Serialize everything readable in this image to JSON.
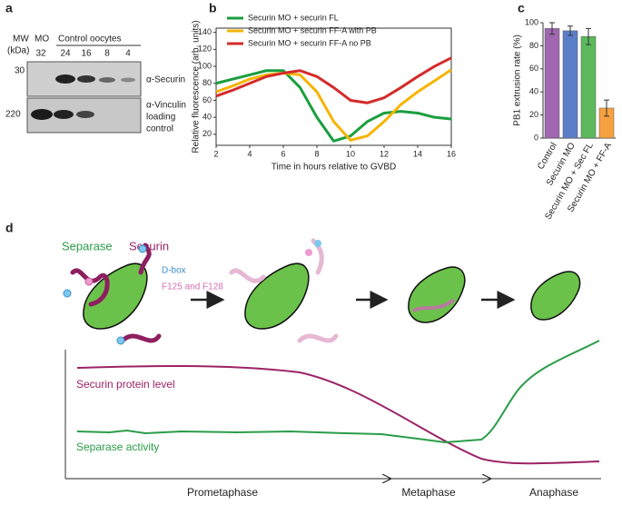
{
  "panel_labels": [
    "a",
    "b",
    "c",
    "d"
  ],
  "blot": {
    "mw_label": "MW",
    "mw_unit": "(kDa)",
    "group_mo": "MO",
    "group_control": "Control oocytes",
    "lanes": [
      32,
      24,
      16,
      8,
      4
    ],
    "markers": [
      30,
      220
    ],
    "securin_label": "α-Securin",
    "vinculin_label": [
      "α-Vinculin",
      "loading",
      "control"
    ]
  },
  "chart_data": [
    {
      "type": "line",
      "xlabel": "Time in hours relative to GVBD",
      "ylabel": "Relative fluorescence (arb. units)",
      "x": [
        2,
        3,
        4,
        5,
        6,
        7,
        8,
        9,
        10,
        11,
        12,
        13,
        14,
        15,
        16
      ],
      "series": [
        {
          "name": "Securin MO + securin FL",
          "color": "#1a9e3f",
          "values": [
            80,
            85,
            90,
            95,
            95,
            75,
            40,
            12,
            18,
            35,
            45,
            47,
            45,
            40,
            38
          ]
        },
        {
          "name": "Securin MO + securin FF-A with PB",
          "color": "#f5b400",
          "values": [
            70,
            77,
            85,
            90,
            92,
            90,
            70,
            35,
            13,
            18,
            35,
            55,
            70,
            83,
            96
          ]
        },
        {
          "name": "Securin MO + securin FF-A no PB",
          "color": "#d42b2b",
          "values": [
            65,
            72,
            80,
            88,
            92,
            95,
            88,
            75,
            60,
            57,
            63,
            75,
            88,
            100,
            110
          ]
        }
      ],
      "xlim": [
        2,
        16
      ],
      "xticks": [
        2,
        4,
        6,
        8,
        10,
        12,
        14,
        16
      ],
      "ylim": [
        7,
        145
      ],
      "yticks": [
        20,
        40,
        60,
        80,
        100,
        120,
        140
      ]
    },
    {
      "type": "bar",
      "ylabel": "PB1 extrusion rate (%)",
      "categories": [
        "Control",
        "Securin MO",
        "Securin MO + Sec FL",
        "Securin MO + FF-A"
      ],
      "values": [
        95,
        93,
        88,
        26
      ],
      "errors": [
        5,
        4,
        7,
        7
      ],
      "colors": [
        "#a066b0",
        "#5b7ec9",
        "#5cba5c",
        "#f7a040"
      ],
      "ylim": [
        0,
        100
      ],
      "yticks": [
        0,
        20,
        40,
        60,
        80,
        100
      ]
    }
  ],
  "diagram": {
    "separase": "Separase",
    "securin": "Securin",
    "dbox": "D-box",
    "motifs": "F125 and F128",
    "securin_level": "Securin protein level",
    "separase_activity": "Separase activity",
    "phases": [
      "Prometaphase",
      "Metaphase",
      "Anaphase"
    ]
  }
}
